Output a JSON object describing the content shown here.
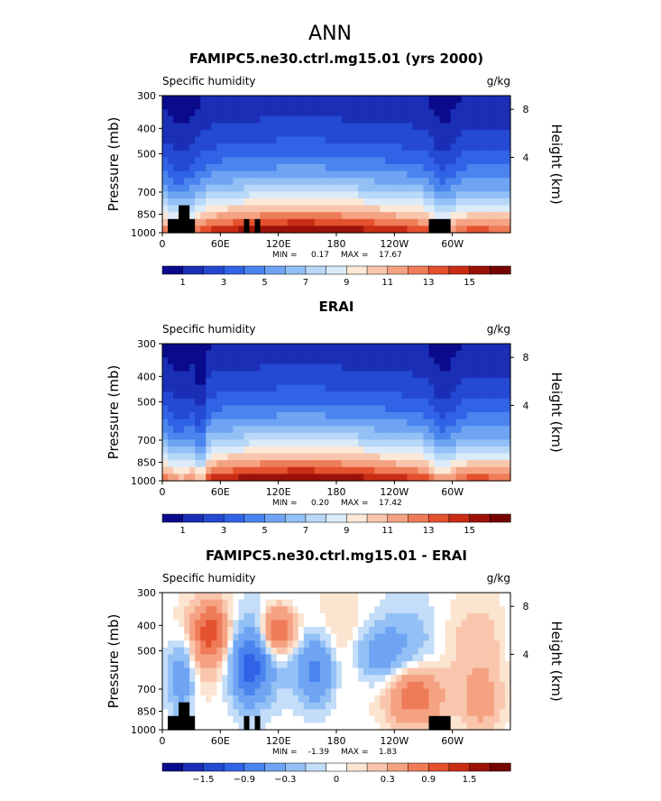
{
  "page_title": "ANN",
  "chart_data": [
    {
      "type": "heatmap",
      "title": "FAMIPC5.ne30.ctrl.mg15.01 (yrs 2000)",
      "variable": "Specific humidity",
      "units": "g/kg",
      "ylabel": "Pressure (mb)",
      "y2label": "Height (km)",
      "x_ticks": [
        "0",
        "60E",
        "120E",
        "180",
        "120W",
        "60W"
      ],
      "y_ticks": [
        "300",
        "400",
        "500",
        "700",
        "850",
        "1000"
      ],
      "y2_ticks": [
        "8",
        "4"
      ],
      "ylim": [
        1000,
        300
      ],
      "min_label": "MIN =",
      "min_value": "0.17",
      "max_label": "MAX =",
      "max_value": "17.67",
      "colorbar_labels": [
        "1",
        "3",
        "5",
        "7",
        "9",
        "11",
        "13",
        "15"
      ],
      "colorbar_colors": [
        "#0a0a8c",
        "#1a2fb5",
        "#2449d2",
        "#3063e6",
        "#4a84ee",
        "#6ea4f2",
        "#93c0f5",
        "#b9d8f8",
        "#dcebfa",
        "#fbe8d6",
        "#f9c6ad",
        "#f5a283",
        "#ef7c58",
        "#e4512f",
        "#c82d14",
        "#9c1208",
        "#740500"
      ],
      "mode": "abs"
    },
    {
      "type": "heatmap",
      "title": "ERAI",
      "variable": "Specific humidity",
      "units": "g/kg",
      "ylabel": "Pressure (mb)",
      "y2label": "Height (km)",
      "x_ticks": [
        "0",
        "60E",
        "120E",
        "180",
        "120W",
        "60W"
      ],
      "y_ticks": [
        "300",
        "400",
        "500",
        "700",
        "850",
        "1000"
      ],
      "y2_ticks": [
        "8",
        "4"
      ],
      "ylim": [
        1000,
        300
      ],
      "min_label": "MIN =",
      "min_value": "0.20",
      "max_label": "MAX =",
      "max_value": "17.42",
      "colorbar_labels": [
        "1",
        "3",
        "5",
        "7",
        "9",
        "11",
        "13",
        "15"
      ],
      "colorbar_colors": [
        "#0a0a8c",
        "#1a2fb5",
        "#2449d2",
        "#3063e6",
        "#4a84ee",
        "#6ea4f2",
        "#93c0f5",
        "#b9d8f8",
        "#dcebfa",
        "#fbe8d6",
        "#f9c6ad",
        "#f5a283",
        "#ef7c58",
        "#e4512f",
        "#c82d14",
        "#9c1208",
        "#740500"
      ],
      "mode": "abs"
    },
    {
      "type": "heatmap",
      "title": "FAMIPC5.ne30.ctrl.mg15.01 - ERAI",
      "variable": "Specific humidity",
      "units": "g/kg",
      "ylabel": "Pressure (mb)",
      "y2label": "Height (km)",
      "x_ticks": [
        "0",
        "60E",
        "120E",
        "180",
        "120W",
        "60W"
      ],
      "y_ticks": [
        "300",
        "400",
        "500",
        "700",
        "850",
        "1000"
      ],
      "y2_ticks": [
        "8",
        "4"
      ],
      "ylim": [
        1000,
        300
      ],
      "min_label": "MIN =",
      "min_value": "-1.39",
      "max_label": "MAX =",
      "max_value": "1.83",
      "colorbar_labels": [
        "−1.5",
        "−0.9",
        "−0.3",
        "0",
        "0.3",
        "0.9",
        "1.5"
      ],
      "colorbar_colors": [
        "#0a0a8c",
        "#1a2fb5",
        "#2449d2",
        "#3063e6",
        "#4a84ee",
        "#6ea4f2",
        "#93c0f5",
        "#c4ddf8",
        "#ffffff",
        "#fbe4d0",
        "#f9c6ad",
        "#f5a283",
        "#ef7c58",
        "#e4512f",
        "#c82d14",
        "#9c1208",
        "#740500"
      ],
      "mode": "diff"
    }
  ]
}
